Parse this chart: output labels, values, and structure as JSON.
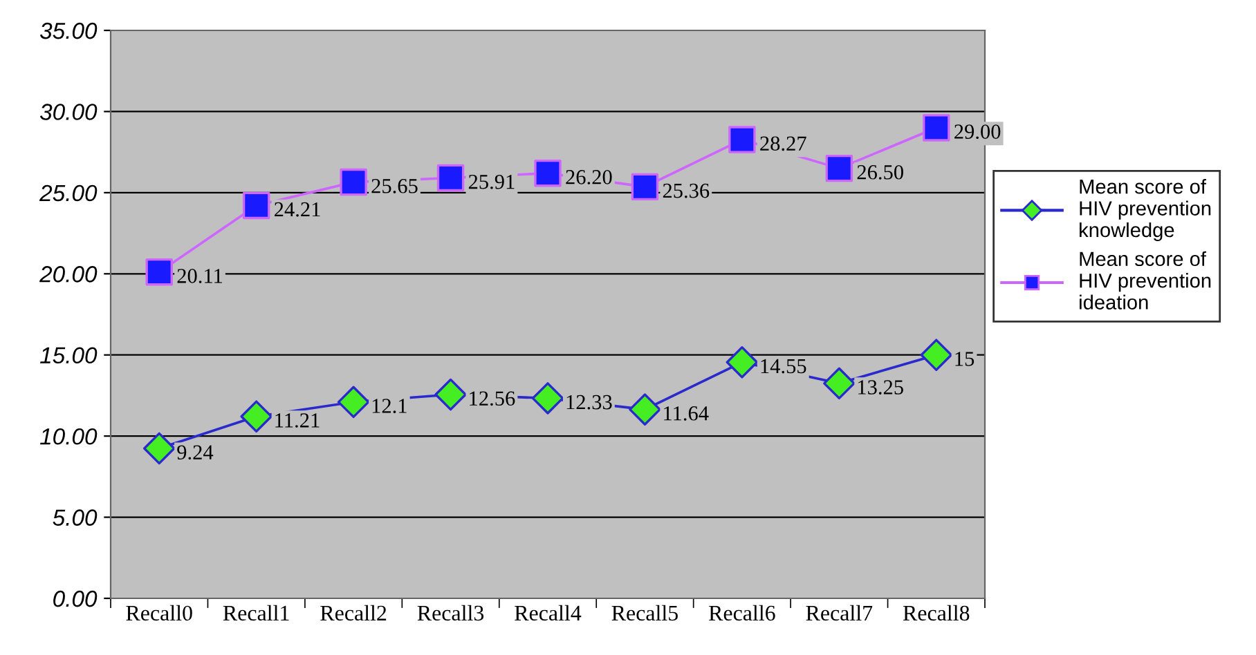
{
  "chart_data": {
    "type": "line",
    "categories": [
      "Recall0",
      "Recall1",
      "Recall2",
      "Recall3",
      "Recall4",
      "Recall5",
      "Recall6",
      "Recall7",
      "Recall8"
    ],
    "series": [
      {
        "name": "Mean score of HIV prevention knowledge",
        "color": "#2a2acc",
        "marker": "diamond",
        "colors": [
          "#44ee22",
          "#44ee22",
          "#44ee22",
          "#44ee22",
          "#44ee22",
          "#44ee22",
          "#44ee22",
          "#44ee22",
          "#44ee22"
        ],
        "values": [
          9.24,
          11.21,
          12.1,
          12.56,
          12.33,
          11.64,
          14.55,
          13.25,
          15
        ],
        "value_labels": [
          "9.24",
          "11.21",
          "12.1",
          "12.56",
          "12.33",
          "11.64",
          "14.55",
          "13.25",
          "15"
        ]
      },
      {
        "name": "Mean score of HIV prevention ideation",
        "color": "#cc66ff",
        "marker": "square",
        "colors": [
          "#1a1aff",
          "#1a1aff",
          "#1a1aff",
          "#1a1aff",
          "#1a1aff",
          "#1a1aff",
          "#1a1aff",
          "#1a1aff",
          "#1a1aff"
        ],
        "values": [
          20.11,
          24.21,
          25.65,
          25.91,
          26.2,
          25.36,
          28.27,
          26.5,
          29.0
        ],
        "value_labels": [
          "20.11",
          "24.21",
          "25.65",
          "25.91",
          "26.20",
          "25.36",
          "28.27",
          "26.50",
          "29.00"
        ]
      }
    ],
    "ylim": [
      0,
      35
    ],
    "yticks": [
      {
        "value": 0,
        "label": "0.00"
      },
      {
        "value": 5,
        "label": "5.00"
      },
      {
        "value": 10,
        "label": "10.00"
      },
      {
        "value": 15,
        "label": "15.00"
      },
      {
        "value": 20,
        "label": "20.00"
      },
      {
        "value": 25,
        "label": "25.00"
      },
      {
        "value": 30,
        "label": "30.00"
      },
      {
        "value": 35,
        "label": "35.00"
      }
    ],
    "grid": "y",
    "legend": "right"
  }
}
